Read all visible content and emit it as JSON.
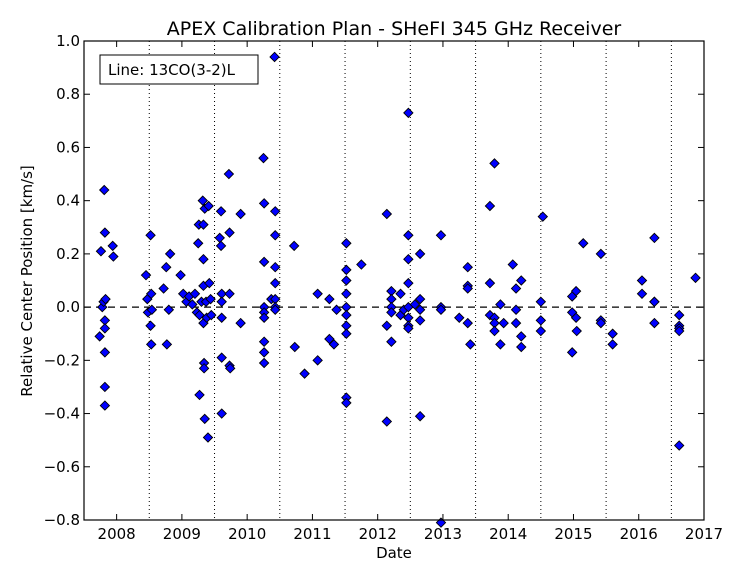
{
  "chart_data": {
    "type": "scatter",
    "title": "APEX Calibration Plan - SHeFI 345 GHz Receiver",
    "xlabel": "Date",
    "ylabel": "Relative Center Position [km/s]",
    "legend_label": "Line: 13CO(3-2)L",
    "legend_position": "top-left",
    "xlim": [
      2007.5,
      2017.0
    ],
    "ylim": [
      -0.8,
      1.0
    ],
    "x_ticks": [
      {
        "value": 2008,
        "label": "2008"
      },
      {
        "value": 2009,
        "label": "2009"
      },
      {
        "value": 2010,
        "label": "2010"
      },
      {
        "value": 2011,
        "label": "2011"
      },
      {
        "value": 2012,
        "label": "2012"
      },
      {
        "value": 2013,
        "label": "2013"
      },
      {
        "value": 2014,
        "label": "2014"
      },
      {
        "value": 2015,
        "label": "2015"
      },
      {
        "value": 2016,
        "label": "2016"
      },
      {
        "value": 2017,
        "label": "2017"
      }
    ],
    "y_ticks": [
      {
        "value": -0.8,
        "label": "−0.8"
      },
      {
        "value": -0.6,
        "label": "−0.6"
      },
      {
        "value": -0.4,
        "label": "−0.4"
      },
      {
        "value": -0.2,
        "label": "−0.2"
      },
      {
        "value": 0.0,
        "label": "0.0"
      },
      {
        "value": 0.2,
        "label": "0.2"
      },
      {
        "value": 0.4,
        "label": "0.4"
      },
      {
        "value": 0.6,
        "label": "0.6"
      },
      {
        "value": 0.8,
        "label": "0.8"
      },
      {
        "value": 1.0,
        "label": "1.0"
      }
    ],
    "vertical_dotted_lines_x": [
      2008.5,
      2009.5,
      2010.5,
      2011.5,
      2012.5,
      2013.5,
      2014.5,
      2015.5,
      2016.5
    ],
    "reference_line_y": 0.0,
    "marker_color": "#0000ff",
    "series": [
      {
        "points": [
          [
            2007.74,
            -0.11
          ],
          [
            2007.76,
            0.21
          ],
          [
            2007.78,
            0.0
          ],
          [
            2007.8,
            0.02
          ],
          [
            2007.81,
            0.44
          ],
          [
            2007.82,
            0.28
          ],
          [
            2007.82,
            -0.05
          ],
          [
            2007.82,
            -0.08
          ],
          [
            2007.83,
            0.03
          ],
          [
            2007.82,
            -0.17
          ],
          [
            2007.82,
            -0.3
          ],
          [
            2007.82,
            -0.37
          ],
          [
            2007.94,
            0.23
          ],
          [
            2007.95,
            0.19
          ],
          [
            2008.45,
            0.12
          ],
          [
            2008.47,
            0.03
          ],
          [
            2008.48,
            -0.02
          ],
          [
            2008.52,
            0.27
          ],
          [
            2008.53,
            0.05
          ],
          [
            2008.54,
            -0.01
          ],
          [
            2008.52,
            -0.07
          ],
          [
            2008.53,
            -0.14
          ],
          [
            2008.72,
            0.07
          ],
          [
            2008.76,
            0.15
          ],
          [
            2008.77,
            -0.14
          ],
          [
            2008.8,
            -0.01
          ],
          [
            2008.82,
            0.2
          ],
          [
            2008.98,
            0.12
          ],
          [
            2009.02,
            0.05
          ],
          [
            2009.07,
            0.02
          ],
          [
            2009.11,
            0.04
          ],
          [
            2009.16,
            0.01
          ],
          [
            2009.2,
            0.05
          ],
          [
            2009.23,
            -0.02
          ],
          [
            2009.25,
            0.24
          ],
          [
            2009.26,
            0.31
          ],
          [
            2009.27,
            -0.03
          ],
          [
            2009.27,
            -0.33
          ],
          [
            2009.3,
            0.02
          ],
          [
            2009.32,
            0.4
          ],
          [
            2009.33,
            0.31
          ],
          [
            2009.33,
            0.18
          ],
          [
            2009.33,
            0.08
          ],
          [
            2009.33,
            -0.06
          ],
          [
            2009.34,
            -0.21
          ],
          [
            2009.34,
            -0.23
          ],
          [
            2009.35,
            -0.42
          ],
          [
            2009.35,
            0.37
          ],
          [
            2009.37,
            0.02
          ],
          [
            2009.38,
            -0.04
          ],
          [
            2009.4,
            -0.49
          ],
          [
            2009.41,
            0.38
          ],
          [
            2009.42,
            0.09
          ],
          [
            2009.44,
            0.03
          ],
          [
            2009.45,
            -0.03
          ],
          [
            2009.58,
            0.26
          ],
          [
            2009.6,
            0.23
          ],
          [
            2009.6,
            0.36
          ],
          [
            2009.61,
            0.05
          ],
          [
            2009.61,
            0.02
          ],
          [
            2009.61,
            -0.04
          ],
          [
            2009.61,
            -0.19
          ],
          [
            2009.61,
            -0.4
          ],
          [
            2009.72,
            0.5
          ],
          [
            2009.73,
            0.28
          ],
          [
            2009.73,
            0.05
          ],
          [
            2009.73,
            -0.22
          ],
          [
            2009.74,
            -0.23
          ],
          [
            2009.9,
            0.35
          ],
          [
            2009.9,
            -0.06
          ],
          [
            2010.25,
            0.56
          ],
          [
            2010.26,
            0.39
          ],
          [
            2010.26,
            0.17
          ],
          [
            2010.26,
            0.0
          ],
          [
            2010.26,
            -0.02
          ],
          [
            2010.26,
            -0.04
          ],
          [
            2010.26,
            -0.13
          ],
          [
            2010.26,
            -0.17
          ],
          [
            2010.26,
            -0.21
          ],
          [
            2010.37,
            0.03
          ],
          [
            2010.42,
            0.94
          ],
          [
            2010.43,
            0.36
          ],
          [
            2010.43,
            0.27
          ],
          [
            2010.43,
            0.15
          ],
          [
            2010.43,
            0.09
          ],
          [
            2010.43,
            0.03
          ],
          [
            2010.43,
            0.0
          ],
          [
            2010.43,
            -0.01
          ],
          [
            2010.72,
            0.23
          ],
          [
            2010.73,
            -0.15
          ],
          [
            2010.88,
            -0.25
          ],
          [
            2011.08,
            0.05
          ],
          [
            2011.08,
            -0.2
          ],
          [
            2011.26,
            0.03
          ],
          [
            2011.26,
            -0.12
          ],
          [
            2011.33,
            -0.14
          ],
          [
            2011.37,
            -0.01
          ],
          [
            2011.52,
            0.24
          ],
          [
            2011.52,
            0.14
          ],
          [
            2011.52,
            0.1
          ],
          [
            2011.52,
            0.05
          ],
          [
            2011.52,
            0.0
          ],
          [
            2011.52,
            -0.03
          ],
          [
            2011.52,
            -0.07
          ],
          [
            2011.52,
            -0.1
          ],
          [
            2011.52,
            -0.34
          ],
          [
            2011.52,
            -0.36
          ],
          [
            2011.75,
            0.16
          ],
          [
            2012.14,
            0.35
          ],
          [
            2012.14,
            -0.07
          ],
          [
            2012.14,
            -0.43
          ],
          [
            2012.21,
            0.06
          ],
          [
            2012.21,
            0.03
          ],
          [
            2012.21,
            0.0
          ],
          [
            2012.21,
            -0.02
          ],
          [
            2012.21,
            -0.13
          ],
          [
            2012.35,
            0.05
          ],
          [
            2012.35,
            -0.03
          ],
          [
            2012.4,
            -0.01
          ],
          [
            2012.47,
            0.73
          ],
          [
            2012.47,
            0.27
          ],
          [
            2012.47,
            0.18
          ],
          [
            2012.47,
            0.09
          ],
          [
            2012.47,
            0.0
          ],
          [
            2012.47,
            -0.04
          ],
          [
            2012.47,
            -0.07
          ],
          [
            2012.47,
            -0.08
          ],
          [
            2012.57,
            0.01
          ],
          [
            2012.65,
            0.2
          ],
          [
            2012.65,
            0.03
          ],
          [
            2012.65,
            -0.01
          ],
          [
            2012.65,
            -0.05
          ],
          [
            2012.65,
            -0.41
          ],
          [
            2012.97,
            0.27
          ],
          [
            2012.97,
            0.0
          ],
          [
            2012.97,
            -0.01
          ],
          [
            2012.97,
            -0.81
          ],
          [
            2013.25,
            -0.04
          ],
          [
            2013.38,
            0.15
          ],
          [
            2013.38,
            0.08
          ],
          [
            2013.38,
            0.07
          ],
          [
            2013.38,
            -0.06
          ],
          [
            2013.42,
            -0.14
          ],
          [
            2013.72,
            0.38
          ],
          [
            2013.72,
            0.09
          ],
          [
            2013.72,
            -0.03
          ],
          [
            2013.79,
            0.54
          ],
          [
            2013.79,
            -0.04
          ],
          [
            2013.79,
            -0.06
          ],
          [
            2013.79,
            -0.09
          ],
          [
            2013.88,
            0.01
          ],
          [
            2013.88,
            -0.14
          ],
          [
            2013.93,
            -0.06
          ],
          [
            2014.07,
            0.16
          ],
          [
            2014.12,
            0.07
          ],
          [
            2014.12,
            -0.01
          ],
          [
            2014.12,
            -0.06
          ],
          [
            2014.2,
            0.1
          ],
          [
            2014.2,
            -0.11
          ],
          [
            2014.2,
            -0.15
          ],
          [
            2014.5,
            0.02
          ],
          [
            2014.5,
            -0.05
          ],
          [
            2014.5,
            -0.09
          ],
          [
            2014.53,
            0.34
          ],
          [
            2014.98,
            0.04
          ],
          [
            2014.98,
            -0.02
          ],
          [
            2014.98,
            -0.17
          ],
          [
            2015.04,
            0.06
          ],
          [
            2015.04,
            -0.04
          ],
          [
            2015.05,
            -0.09
          ],
          [
            2015.15,
            0.24
          ],
          [
            2015.42,
            0.2
          ],
          [
            2015.42,
            -0.05
          ],
          [
            2015.42,
            -0.06
          ],
          [
            2015.6,
            -0.1
          ],
          [
            2015.6,
            -0.14
          ],
          [
            2016.05,
            0.1
          ],
          [
            2016.05,
            0.05
          ],
          [
            2016.24,
            0.26
          ],
          [
            2016.24,
            0.02
          ],
          [
            2016.24,
            0.02
          ],
          [
            2016.24,
            -0.06
          ],
          [
            2016.62,
            -0.03
          ],
          [
            2016.62,
            -0.07
          ],
          [
            2016.62,
            -0.08
          ],
          [
            2016.62,
            -0.09
          ],
          [
            2016.62,
            -0.52
          ],
          [
            2016.87,
            0.11
          ]
        ]
      }
    ]
  }
}
